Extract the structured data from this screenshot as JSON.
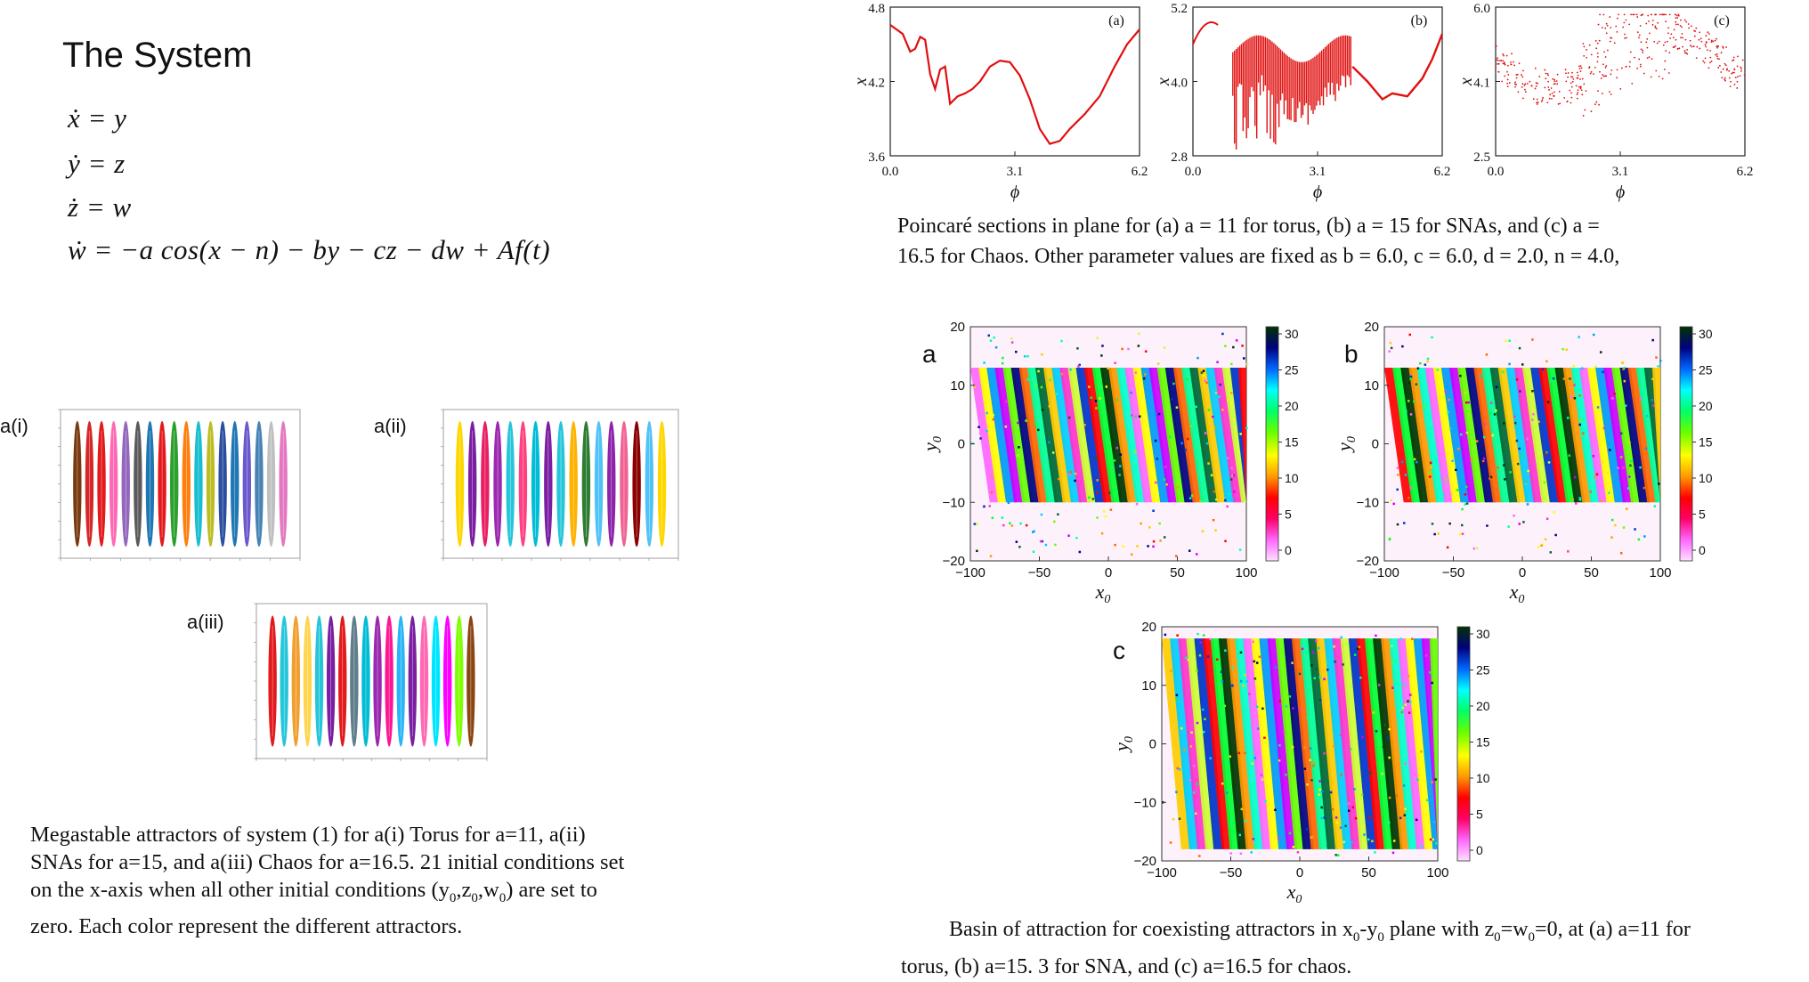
{
  "system": {
    "title": "The System",
    "equations": [
      "ẋ = y",
      "ẏ = z",
      "ż = w",
      "ẇ = −a cos(x − n) − by − cz − dw + Af(t)"
    ]
  },
  "megastable": {
    "labels": [
      "a(i)",
      "a(ii)",
      "a(iii)"
    ],
    "caption": "Megastable attractors of system (1) for  a(i) Torus  for a=11, a(ii) SNAs for a=15, and a(iii) Chaos for a=16.5. 21 initial conditions set on the x-axis when all other initial conditions (y0,z0,w0) are set to zero.  Each color represent the different attractors.",
    "caption_lines": [
      "Megastable attractors of system (1) for   a(i) Torus   for a=11, a(ii)",
      "SNAs for a=15, and a(iii) Chaos for a=16.5. 21 initial conditions set",
      "on the x-axis when all other initial conditions (y",
      ",z",
      ",w",
      ") are set to",
      "zero.  Each color represent the different attractors."
    ],
    "panel_colors": [
      [
        "#7a3b10",
        "#d62728",
        "#e31a1c",
        "#ff69b4",
        "#9467bd",
        "#5a5a5a",
        "#1f77b4",
        "#e31a1c",
        "#2ca02c",
        "#ff7f0e",
        "#17becf",
        "#bcbd22",
        "#2b4fa0",
        "#1f77b4",
        "#6a5acd",
        "#4682b4",
        "#c0c0c0",
        "#e377c2"
      ],
      [
        "#ffd700",
        "#7b1fa2",
        "#e91e63",
        "#9c27b0",
        "#26c6da",
        "#ff4081",
        "#00bcd4",
        "#7b1fa2",
        "#26c6da",
        "#ffb300",
        "#2e7d32",
        "#4fc3f7",
        "#8e24aa",
        "#f06292",
        "#8b0000",
        "#4fc3f7",
        "#ffd700"
      ],
      [
        "#e31a1c",
        "#26c6da",
        "#f0a030",
        "#ffd54f",
        "#26c6da",
        "#7b1fa2",
        "#e31a1c",
        "#607d8b",
        "#00bcd4",
        "#9c27b0",
        "#ff1493",
        "#29b6f6",
        "#7b1fa2",
        "#ff69b4",
        "#00e5ff",
        "#ff00ff",
        "#7fff00",
        "#8b4513"
      ]
    ]
  },
  "poincare": {
    "panels": [
      {
        "tag": "(a)",
        "ylabel": "x",
        "yticks": [
          "4.8",
          "4.2",
          "3.6"
        ],
        "xticks": [
          "0.0",
          "3.1",
          "6.2"
        ],
        "xlabel": "ϕ"
      },
      {
        "tag": "(b)",
        "ylabel": "x",
        "yticks": [
          "5.2",
          "4.0",
          "2.8"
        ],
        "xticks": [
          "0.0",
          "3.1",
          "6.2"
        ],
        "xlabel": "ϕ"
      },
      {
        "tag": "(c)",
        "ylabel": "x",
        "yticks": [
          "6.0",
          "4.1",
          "2.5"
        ],
        "xticks": [
          "0.0",
          "3.1",
          "6.2"
        ],
        "xlabel": "ϕ"
      }
    ],
    "caption_lines": [
      "Poincaré sections in plane for (a) a = 11 for torus, (b)  a = 15 for SNAs, and (c)    a =",
      "16.5 for Chaos. Other parameter values are fixed as b = 6.0, c = 6.0, d = 2.0, n = 4.0,"
    ]
  },
  "basin": {
    "panels": [
      {
        "tag": "a",
        "ylabel": "y",
        "ysub": "0",
        "xlabel": "x",
        "xsub": "0"
      },
      {
        "tag": "b",
        "ylabel": "y",
        "ysub": "0",
        "xlabel": "x",
        "xsub": "0"
      },
      {
        "tag": "c",
        "ylabel": "y",
        "ysub": "0",
        "xlabel": "x",
        "xsub": "0"
      }
    ],
    "xticks": [
      "−100",
      "−50",
      "0",
      "50",
      "100"
    ],
    "yticks": [
      "20",
      "10",
      "0",
      "−10",
      "−20"
    ],
    "cbar_ticks": [
      "30",
      "25",
      "20",
      "15",
      "10",
      "5",
      "0"
    ],
    "caption_lines": [
      "Basin of attraction for coexisting attractors in x",
      "-y",
      " plane with z",
      "=w",
      "=0,  at (a)  a=11 for",
      "torus,    (b)  a=15. 3 for SNA, and (c)  a=16.5 for chaos."
    ]
  }
}
